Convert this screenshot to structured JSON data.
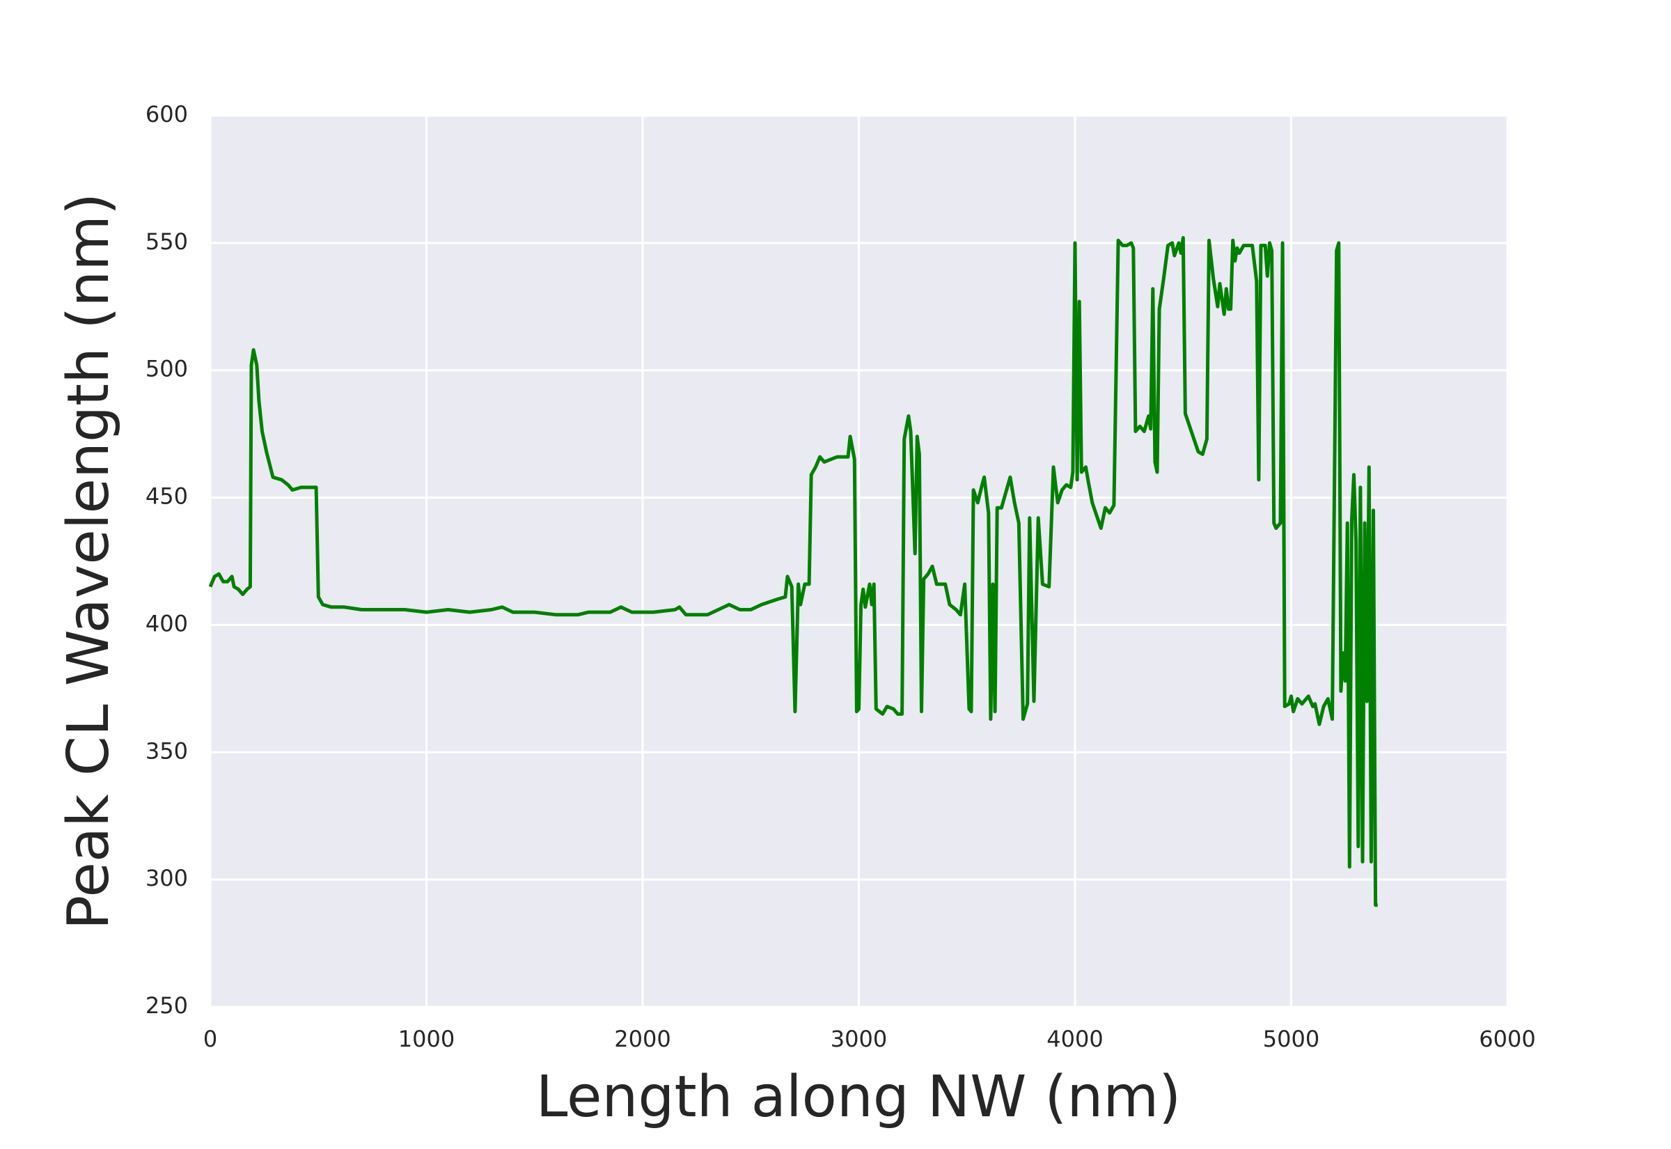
{
  "chart_data": {
    "type": "line",
    "xlabel": "Length along NW (nm)",
    "ylabel": "Peak CL Wavelength (nm)",
    "color": "#008000",
    "grid": true,
    "xlim": [
      0,
      6000
    ],
    "ylim": [
      250,
      600
    ],
    "xticks": [
      0,
      1000,
      2000,
      3000,
      4000,
      5000,
      6000
    ],
    "yticks": [
      250,
      300,
      350,
      400,
      450,
      500,
      550,
      600
    ],
    "x": [
      0,
      20,
      40,
      60,
      80,
      100,
      110,
      130,
      150,
      170,
      185,
      190,
      200,
      215,
      225,
      240,
      260,
      290,
      330,
      360,
      380,
      420,
      460,
      490,
      500,
      520,
      560,
      620,
      700,
      800,
      900,
      1000,
      1100,
      1200,
      1300,
      1350,
      1400,
      1500,
      1600,
      1700,
      1750,
      1850,
      1900,
      1950,
      2050,
      2150,
      2170,
      2200,
      2300,
      2350,
      2400,
      2450,
      2500,
      2550,
      2620,
      2660,
      2670,
      2690,
      2705,
      2720,
      2730,
      2750,
      2770,
      2780,
      2800,
      2820,
      2840,
      2870,
      2900,
      2950,
      2960,
      2980,
      2990,
      3000,
      3010,
      3020,
      3030,
      3050,
      3060,
      3070,
      3080,
      3110,
      3130,
      3160,
      3180,
      3200,
      3210,
      3230,
      3240,
      3260,
      3270,
      3280,
      3290,
      3300,
      3320,
      3340,
      3360,
      3400,
      3420,
      3450,
      3470,
      3490,
      3510,
      3520,
      3530,
      3550,
      3570,
      3580,
      3600,
      3610,
      3620,
      3630,
      3640,
      3660,
      3680,
      3700,
      3720,
      3740,
      3760,
      3780,
      3790,
      3810,
      3830,
      3850,
      3880,
      3900,
      3920,
      3940,
      3960,
      3980,
      3990,
      4000,
      4010,
      4020,
      4030,
      4050,
      4060,
      4080,
      4100,
      4120,
      4140,
      4160,
      4180,
      4200,
      4220,
      4240,
      4260,
      4270,
      4280,
      4300,
      4320,
      4340,
      4350,
      4360,
      4370,
      4380,
      4390,
      4410,
      4430,
      4450,
      4460,
      4480,
      4490,
      4500,
      4510,
      4530,
      4550,
      4570,
      4590,
      4610,
      4620,
      4640,
      4660,
      4670,
      4690,
      4700,
      4710,
      4720,
      4730,
      4740,
      4750,
      4760,
      4780,
      4800,
      4820,
      4840,
      4850,
      4860,
      4880,
      4890,
      4900,
      4910,
      4920,
      4930,
      4950,
      4960,
      4970,
      4990,
      5000,
      5010,
      5030,
      5050,
      5080,
      5100,
      5110,
      5130,
      5150,
      5170,
      5190,
      5210,
      5220,
      5230,
      5240,
      5250,
      5260,
      5270,
      5280,
      5290,
      5300,
      5310,
      5320,
      5330,
      5340,
      5350,
      5360,
      5370,
      5380,
      5390,
      5400
    ],
    "y": [
      415,
      419,
      420,
      417,
      417,
      419,
      415,
      414,
      412,
      414,
      415,
      502,
      508,
      502,
      488,
      476,
      468,
      458,
      457,
      455,
      453,
      454,
      454,
      454,
      411,
      408,
      407,
      407,
      406,
      406,
      406,
      405,
      406,
      405,
      406,
      407,
      405,
      405,
      404,
      404,
      405,
      405,
      407,
      405,
      405,
      406,
      407,
      404,
      404,
      406,
      408,
      406,
      406,
      408,
      410,
      411,
      419,
      415,
      366,
      416,
      408,
      416,
      416,
      459,
      462,
      466,
      464,
      465,
      466,
      466,
      474,
      465,
      366,
      367,
      408,
      414,
      407,
      416,
      408,
      416,
      367,
      365,
      368,
      367,
      365,
      365,
      473,
      482,
      476,
      428,
      474,
      467,
      366,
      418,
      420,
      423,
      416,
      416,
      408,
      406,
      404,
      416,
      367,
      366,
      453,
      448,
      455,
      458,
      444,
      363,
      416,
      366,
      446,
      446,
      452,
      458,
      448,
      440,
      363,
      369,
      442,
      370,
      442,
      416,
      415,
      462,
      448,
      453,
      455,
      454,
      460,
      550,
      457,
      527,
      460,
      462,
      457,
      448,
      443,
      438,
      446,
      444,
      447,
      551,
      549,
      549,
      550,
      548,
      476,
      478,
      476,
      482,
      477,
      532,
      464,
      460,
      524,
      536,
      549,
      550,
      545,
      550,
      546,
      552,
      483,
      478,
      473,
      468,
      467,
      473,
      551,
      536,
      525,
      534,
      522,
      532,
      524,
      524,
      551,
      543,
      548,
      546,
      549,
      549,
      549,
      535,
      457,
      549,
      549,
      537,
      550,
      547,
      440,
      438,
      440,
      550,
      368,
      369,
      372,
      366,
      371,
      369,
      372,
      368,
      369,
      361,
      368,
      371,
      363,
      547,
      550,
      374,
      389,
      378,
      440,
      305,
      441,
      459,
      433,
      313,
      454,
      307,
      440,
      370,
      462,
      307,
      445,
      290,
      290
    ]
  }
}
